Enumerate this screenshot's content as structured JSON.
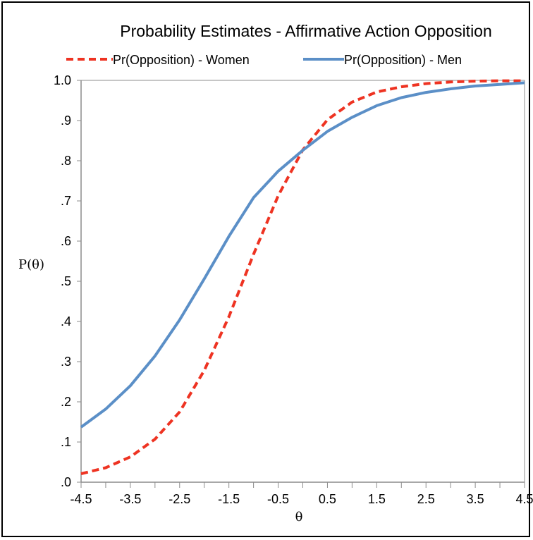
{
  "chart_data": {
    "type": "line",
    "title": "Probability Estimates - Affirmative Action Opposition",
    "xlabel": "θ",
    "ylabel": "P(θ)",
    "xlim": [
      -4.5,
      4.5
    ],
    "ylim": [
      0,
      1
    ],
    "x_ticks": [
      "-4.5",
      "-3.5",
      "-2.5",
      "-1.5",
      "-0.5",
      "0.5",
      "1.5",
      "2.5",
      "3.5",
      "4.5"
    ],
    "y_ticks": [
      ".0",
      ".1",
      ".2",
      ".3",
      ".4",
      ".5",
      ".6",
      ".7",
      ".8",
      ".9",
      "1.0"
    ],
    "grid": false,
    "legend_position": "top",
    "x": [
      -4.5,
      -4.0,
      -3.5,
      -3.0,
      -2.5,
      -2.0,
      -1.5,
      -1.0,
      -0.5,
      0.0,
      0.5,
      1.0,
      1.5,
      2.0,
      2.5,
      3.0,
      3.5,
      4.0,
      4.5
    ],
    "series": [
      {
        "name": "Pr(Opposition) - Women",
        "color": "#ee3322",
        "style": "dashed",
        "values": [
          0.021,
          0.036,
          0.063,
          0.107,
          0.175,
          0.278,
          0.412,
          0.567,
          0.713,
          0.827,
          0.902,
          0.946,
          0.971,
          0.984,
          0.992,
          0.996,
          0.998,
          0.999,
          0.999
        ]
      },
      {
        "name": "Pr(Opposition) - Men",
        "color": "#5b8fc7",
        "style": "solid",
        "values": [
          0.137,
          0.182,
          0.24,
          0.314,
          0.404,
          0.506,
          0.612,
          0.708,
          0.774,
          0.826,
          0.873,
          0.908,
          0.937,
          0.957,
          0.97,
          0.979,
          0.986,
          0.99,
          0.994
        ]
      }
    ]
  }
}
